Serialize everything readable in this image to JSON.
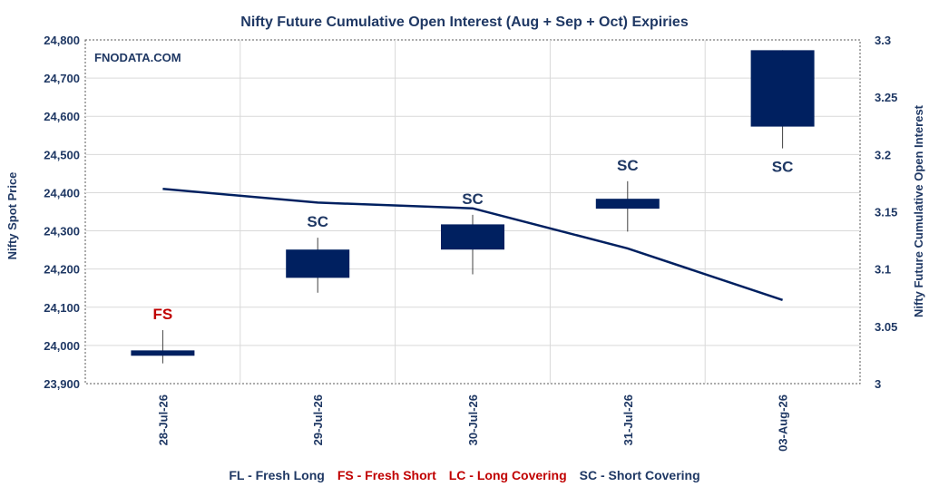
{
  "chart_data": {
    "type": "candlestick+line",
    "title": "Nifty Future Cumulative Open Interest (Aug + Sep + Oct) Expiries",
    "watermark": "FNODATA.COM",
    "ylabel_left": "Nifty Spot Price",
    "ylabel_right": "Nifty Future Cumulative Open Interest",
    "ylim_left": [
      23900,
      24800
    ],
    "ylim_right": [
      3,
      3.3
    ],
    "yticks_left": [
      "24,800",
      "24,700",
      "24,600",
      "24,500",
      "24,400",
      "24,300",
      "24,200",
      "24,100",
      "24,000",
      "23,900"
    ],
    "yticks_left_values": [
      24800,
      24700,
      24600,
      24500,
      24400,
      24300,
      24200,
      24100,
      24000,
      23900
    ],
    "yticks_right": [
      "3.3",
      "3.25",
      "3.2",
      "3.15",
      "3.1",
      "3.05",
      "3"
    ],
    "yticks_right_values": [
      3.3,
      3.25,
      3.2,
      3.15,
      3.1,
      3.05,
      3.0
    ],
    "categories": [
      "28-Jul-26",
      "29-Jul-26",
      "30-Jul-26",
      "31-Jul-26",
      "03-Aug-26"
    ],
    "candles": [
      {
        "date": "28-Jul-26",
        "open": 23987,
        "high": 24040,
        "low": 23953,
        "close": 23973,
        "label": "FS"
      },
      {
        "date": "29-Jul-26",
        "open": 24177,
        "high": 24282,
        "low": 24138,
        "close": 24251,
        "label": "SC"
      },
      {
        "date": "30-Jul-26",
        "open": 24251,
        "high": 24342,
        "low": 24186,
        "close": 24317,
        "label": "SC"
      },
      {
        "date": "31-Jul-26",
        "open": 24358,
        "high": 24430,
        "low": 24298,
        "close": 24384,
        "label": "SC"
      },
      {
        "date": "03-Aug-26",
        "open": 24573,
        "high": 24773,
        "low": 24516,
        "close": 24773,
        "label": "SC"
      }
    ],
    "open_interest_line": {
      "values": [
        3.17,
        3.158,
        3.153,
        3.118,
        3.073
      ]
    },
    "legend": [
      {
        "code": "FL",
        "text": "FL - Fresh Long",
        "color": "#1f3864"
      },
      {
        "code": "FS",
        "text": "FS - Fresh Short",
        "color": "#c00000"
      },
      {
        "code": "LC",
        "text": "LC - Long Covering",
        "color": "#c00000"
      },
      {
        "code": "SC",
        "text": "SC - Short Covering",
        "color": "#1f3864"
      }
    ],
    "label_colors": {
      "FS": "#c00000",
      "FL": "#1f3864",
      "LC": "#c00000",
      "SC": "#1f3864"
    },
    "colors": {
      "candle": "#002060",
      "line": "#002060",
      "axis_text": "#1f3864",
      "grid": "#d9d9d9"
    },
    "grid": true
  }
}
